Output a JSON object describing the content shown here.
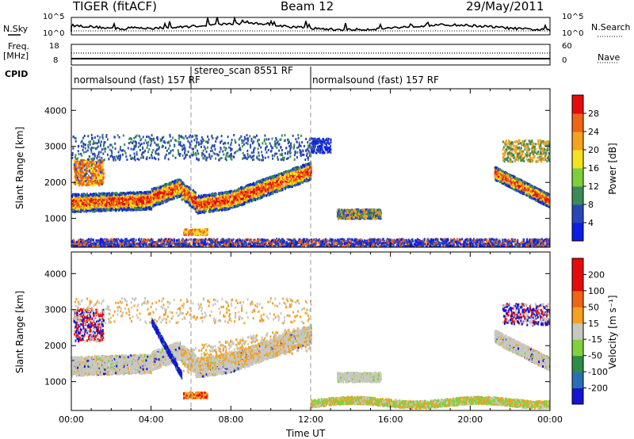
{
  "header": {
    "title": "TIGER (fitACF)",
    "beam": "Beam 12",
    "date": "29/May/2011"
  },
  "noise_panel": {
    "left_label": "N.Sky",
    "right_label": "N.Search",
    "left_ticks": [
      "10^5",
      "10^0"
    ],
    "right_ticks": [
      "10^5",
      "10^0"
    ]
  },
  "freq_panel": {
    "left_label_line1": "Freq.",
    "left_label_line2": "[MHz]",
    "left_ticks": [
      "18",
      "8"
    ],
    "right_label": "Nave",
    "right_ticks": [
      "60",
      "0"
    ]
  },
  "cpid": {
    "label": "CPID",
    "segments": [
      {
        "label": "normalsound (fast) 157 RF",
        "start": 0,
        "end": 12
      },
      {
        "label": "stereo_scan 8551 RF",
        "start": 6.0,
        "end": 12
      },
      {
        "label": "normalsound (fast) 157 RF",
        "start": 12,
        "end": 24
      }
    ]
  },
  "chart_data": [
    {
      "type": "heatmap",
      "quantity": "power",
      "ylabel": "Slant Range [km]",
      "ylim": [
        200,
        4600
      ],
      "yticks": [
        1000,
        2000,
        3000,
        4000
      ],
      "xlim": [
        0,
        24
      ],
      "colorbar": {
        "label": "Power [dB]",
        "ticks": [
          "4",
          "8",
          "12",
          "16",
          "20",
          "24",
          "28"
        ],
        "colors": [
          "#0a1ee6",
          "#2a46b4",
          "#3c8a5a",
          "#7fcf3a",
          "#f5e11e",
          "#f5a21e",
          "#f06414",
          "#e60a0a"
        ]
      }
    },
    {
      "type": "heatmap",
      "quantity": "velocity",
      "ylabel": "Slant Range [km]",
      "ylim": [
        200,
        4600
      ],
      "yticks": [
        1000,
        2000,
        3000,
        4000
      ],
      "xlim": [
        0,
        24
      ],
      "colorbar": {
        "label": "Velocity [m s⁻¹]",
        "ticks": [
          "200",
          "100",
          "50",
          "15",
          "-15",
          "-50",
          "-100",
          "-200"
        ],
        "colors": [
          "#1414d2",
          "#2a6fb4",
          "#2d8c46",
          "#7fd23c",
          "#c8c8c0",
          "#f5a01e",
          "#f06414",
          "#e60a0a",
          "#e60a0a"
        ]
      }
    }
  ],
  "xaxis": {
    "label": "Time UT",
    "ticks": [
      "00:00",
      "04:00",
      "08:00",
      "12:00",
      "16:00",
      "20:00",
      "00:00"
    ],
    "tick_hours": [
      0,
      4,
      8,
      12,
      16,
      20,
      24
    ]
  }
}
